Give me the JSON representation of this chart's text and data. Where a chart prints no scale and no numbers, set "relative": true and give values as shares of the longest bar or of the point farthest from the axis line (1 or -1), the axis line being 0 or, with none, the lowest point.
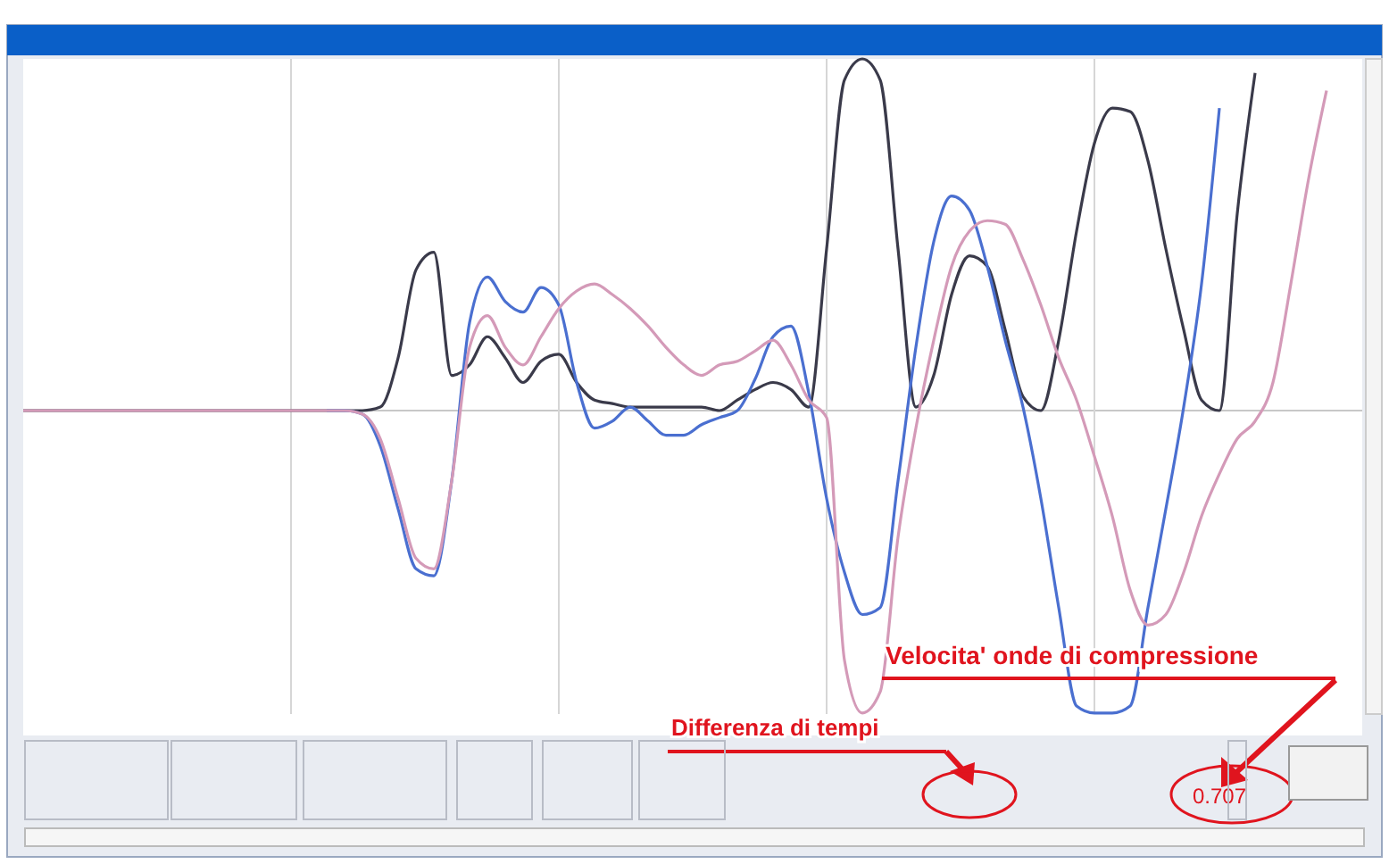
{
  "chart_data": {
    "type": "line",
    "relative": true,
    "grid": "x",
    "line_style": "solid",
    "categories": [
      null,
      null,
      null,
      null,
      null,
      null,
      null,
      null,
      null,
      null,
      null,
      null,
      null,
      null,
      null,
      null,
      null,
      null,
      null,
      null,
      null,
      null,
      null,
      null,
      null,
      null,
      null,
      null,
      null,
      null,
      null,
      null,
      null,
      null,
      null,
      null,
      null,
      null,
      null,
      null,
      null,
      null,
      null,
      null,
      null,
      null,
      null,
      null,
      null,
      null,
      null,
      null,
      null,
      null,
      null,
      null,
      null,
      null,
      null,
      null,
      null,
      null,
      null,
      null,
      null,
      null,
      null,
      null,
      null,
      null,
      null,
      null,
      null,
      null,
      null,
      null
    ],
    "series": [
      {
        "color": "#3a3a4a",
        "values": [
          0,
          0,
          0,
          0,
          0,
          0,
          0,
          0,
          0,
          0,
          0,
          0,
          0,
          0,
          0,
          0,
          0,
          0,
          0,
          0,
          0.01,
          0.15,
          0.4,
          0.45,
          0.1,
          0.13,
          0.21,
          0.15,
          0.08,
          0.14,
          0.16,
          0.08,
          0.03,
          0.02,
          0.01,
          0.01,
          0.01,
          0.01,
          0.01,
          0,
          0.03,
          0.06,
          0.08,
          0.06,
          0.01,
          0.46,
          0.94,
          1,
          0.94,
          0.46,
          0.01,
          0.1,
          0.33,
          0.44,
          0.41,
          0.23,
          0.04,
          0,
          0.2,
          0.51,
          0.76,
          0.86,
          0.85,
          0.71,
          0.46,
          0.23,
          0.03,
          0,
          0.56,
          0.96,
          null,
          null,
          null,
          null,
          null,
          null
        ]
      },
      {
        "color": "#4a6fd0",
        "values": [
          null,
          null,
          null,
          null,
          null,
          null,
          null,
          null,
          null,
          null,
          null,
          null,
          null,
          null,
          null,
          null,
          null,
          0,
          0,
          -0.01,
          -0.1,
          -0.28,
          -0.45,
          -0.47,
          -0.2,
          0.25,
          0.38,
          0.31,
          0.28,
          0.35,
          0.3,
          0.08,
          -0.05,
          -0.03,
          0.01,
          -0.03,
          -0.07,
          -0.07,
          -0.04,
          -0.02,
          0,
          0.09,
          0.21,
          0.24,
          0.05,
          -0.25,
          -0.46,
          -0.58,
          -0.56,
          -0.2,
          0.18,
          0.48,
          0.61,
          0.57,
          0.41,
          0.2,
          0.01,
          -0.25,
          -0.56,
          -0.84,
          -0.86,
          -0.86,
          -0.84,
          -0.56,
          -0.28,
          0.01,
          0.36,
          0.86,
          null,
          null,
          null,
          null,
          null,
          null,
          null,
          null
        ]
      },
      {
        "color": "#d49ab8",
        "values": [
          0,
          0,
          0,
          0,
          0,
          0,
          0,
          0,
          0,
          0,
          0,
          0,
          0,
          0,
          0,
          0,
          0,
          0,
          0,
          -0.01,
          -0.08,
          -0.25,
          -0.42,
          -0.45,
          -0.2,
          0.18,
          0.27,
          0.18,
          0.13,
          0.21,
          0.29,
          0.34,
          0.36,
          0.33,
          0.29,
          0.24,
          0.18,
          0.13,
          0.1,
          0.13,
          0.14,
          0.17,
          0.2,
          0.13,
          0.03,
          -0.02,
          -0.71,
          -0.86,
          -0.8,
          -0.36,
          -0.05,
          0.2,
          0.41,
          0.51,
          0.54,
          0.53,
          0.43,
          0.3,
          0.15,
          0.03,
          -0.13,
          -0.3,
          -0.51,
          -0.61,
          -0.58,
          -0.46,
          -0.3,
          -0.18,
          -0.08,
          -0.03,
          0.08,
          0.36,
          0.66,
          0.91,
          null,
          null
        ]
      }
    ],
    "annotations": [
      "Velocita' onde di compressione",
      "Differenza di tempi",
      "0.707"
    ]
  }
}
